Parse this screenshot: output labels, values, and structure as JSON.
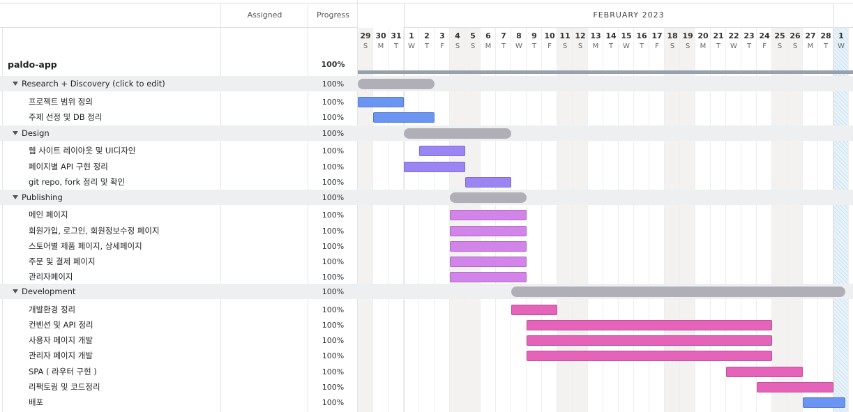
{
  "header": {
    "assigned": "Assigned",
    "progress": "Progress",
    "month": "FEBRUARY 2023"
  },
  "days": [
    {
      "d": "29",
      "w": "S"
    },
    {
      "d": "30",
      "w": "M"
    },
    {
      "d": "31",
      "w": "T"
    },
    {
      "d": "1",
      "w": "W"
    },
    {
      "d": "2",
      "w": "T"
    },
    {
      "d": "3",
      "w": "F"
    },
    {
      "d": "4",
      "w": "S"
    },
    {
      "d": "5",
      "w": "S"
    },
    {
      "d": "6",
      "w": "M"
    },
    {
      "d": "7",
      "w": "T"
    },
    {
      "d": "8",
      "w": "W"
    },
    {
      "d": "9",
      "w": "T"
    },
    {
      "d": "10",
      "w": "F"
    },
    {
      "d": "11",
      "w": "S"
    },
    {
      "d": "12",
      "w": "S"
    },
    {
      "d": "13",
      "w": "M"
    },
    {
      "d": "14",
      "w": "T"
    },
    {
      "d": "15",
      "w": "W"
    },
    {
      "d": "16",
      "w": "T"
    },
    {
      "d": "17",
      "w": "F"
    },
    {
      "d": "18",
      "w": "S"
    },
    {
      "d": "19",
      "w": "S"
    },
    {
      "d": "20",
      "w": "M"
    },
    {
      "d": "21",
      "w": "T"
    },
    {
      "d": "22",
      "w": "W"
    },
    {
      "d": "23",
      "w": "T"
    },
    {
      "d": "24",
      "w": "F"
    },
    {
      "d": "25",
      "w": "S"
    },
    {
      "d": "26",
      "w": "S"
    },
    {
      "d": "27",
      "w": "M"
    },
    {
      "d": "28",
      "w": "T"
    },
    {
      "d": "1",
      "w": "W"
    }
  ],
  "colors": {
    "summary": "#b0aeb6",
    "project_line": "#97a0ad",
    "research": "#6b95f2",
    "design": "#9b85f4",
    "publishing": "#d284ea",
    "development": "#e563b9"
  },
  "rows": [
    {
      "type": "project",
      "name": "paldo-app",
      "progress": "100%"
    },
    {
      "type": "group",
      "name": "Research + Discovery (click to edit)",
      "progress": "100%",
      "start": 1,
      "end": 5
    },
    {
      "type": "task",
      "name": "프로젝트 범위 정의",
      "progress": "100%",
      "start": 1,
      "end": 3,
      "color": "#6b95f2"
    },
    {
      "type": "task",
      "name": "주제 선정 및 DB 정리",
      "progress": "100%",
      "start": 2,
      "end": 5,
      "color": "#6b95f2"
    },
    {
      "type": "group",
      "name": "Design",
      "progress": "100%",
      "start": 4,
      "end": 10
    },
    {
      "type": "task",
      "name": "웹 사이트 레이아웃 및 UI디자인",
      "progress": "100%",
      "start": 5,
      "end": 7,
      "color": "#9b85f4"
    },
    {
      "type": "task",
      "name": "페이지별 API 구현 정리",
      "progress": "100%",
      "start": 4,
      "end": 7,
      "color": "#9b85f4"
    },
    {
      "type": "task",
      "name": "git repo, fork 정리 및 확인",
      "progress": "100%",
      "start": 8,
      "end": 10,
      "color": "#9b85f4"
    },
    {
      "type": "group",
      "name": "Publishing",
      "progress": "100%",
      "start": 7,
      "end": 11
    },
    {
      "type": "task",
      "name": "메인 페이지",
      "progress": "100%",
      "start": 7,
      "end": 11,
      "color": "#d284ea"
    },
    {
      "type": "task",
      "name": "회원가입, 로그인, 회원정보수정 페이지",
      "progress": "100%",
      "start": 7,
      "end": 11,
      "color": "#d284ea"
    },
    {
      "type": "task",
      "name": "스토어별 제품 페이지, 상세페이지",
      "progress": "100%",
      "start": 7,
      "end": 11,
      "color": "#d284ea"
    },
    {
      "type": "task",
      "name": "주문 및 결제 페이지",
      "progress": "100%",
      "start": 7,
      "end": 11,
      "color": "#d284ea"
    },
    {
      "type": "task",
      "name": "관리자페이지",
      "progress": "100%",
      "start": 7,
      "end": 11,
      "color": "#d284ea"
    },
    {
      "type": "group",
      "name": "Development",
      "progress": "100%",
      "start": 11,
      "end": 32
    },
    {
      "type": "task",
      "name": "개발환경 정리",
      "progress": "100%",
      "start": 11,
      "end": 13,
      "color": "#e563b9"
    },
    {
      "type": "task",
      "name": "컨벤션 및 API 정리",
      "progress": "100%",
      "start": 12,
      "end": 27,
      "color": "#e563b9"
    },
    {
      "type": "task",
      "name": "사용자 페이지 개발",
      "progress": "100%",
      "start": 12,
      "end": 27,
      "color": "#e563b9"
    },
    {
      "type": "task",
      "name": "관리자 페이지 개발",
      "progress": "100%",
      "start": 12,
      "end": 27,
      "color": "#e563b9"
    },
    {
      "type": "task",
      "name": "SPA ( 라우터 구현 )",
      "progress": "100%",
      "start": 25,
      "end": 29,
      "color": "#e563b9"
    },
    {
      "type": "task",
      "name": "리팩토링 및 코드정리",
      "progress": "100%",
      "start": 27,
      "end": 31,
      "color": "#e563b9"
    },
    {
      "type": "task",
      "name": "배포",
      "progress": "100%",
      "start": 30,
      "end": 32,
      "color": "#6b95f2"
    }
  ]
}
